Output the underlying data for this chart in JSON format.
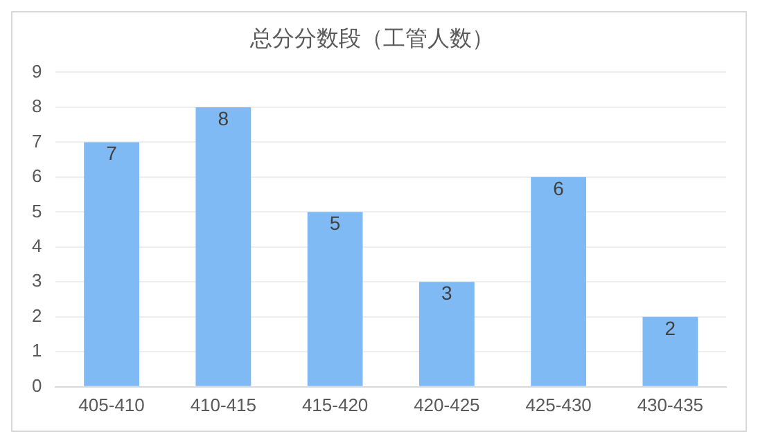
{
  "chart_data": {
    "type": "bar",
    "title": "总分分数段（工管人数）",
    "categories": [
      "405-410",
      "410-415",
      "415-420",
      "420-425",
      "425-430",
      "430-435"
    ],
    "values": [
      7,
      8,
      5,
      3,
      6,
      2
    ],
    "color": "#7fbaf5",
    "ylim": [
      0,
      9
    ],
    "yticks": [
      0,
      1,
      2,
      3,
      4,
      5,
      6,
      7,
      8,
      9
    ],
    "grid": "y",
    "data_labels": true
  }
}
